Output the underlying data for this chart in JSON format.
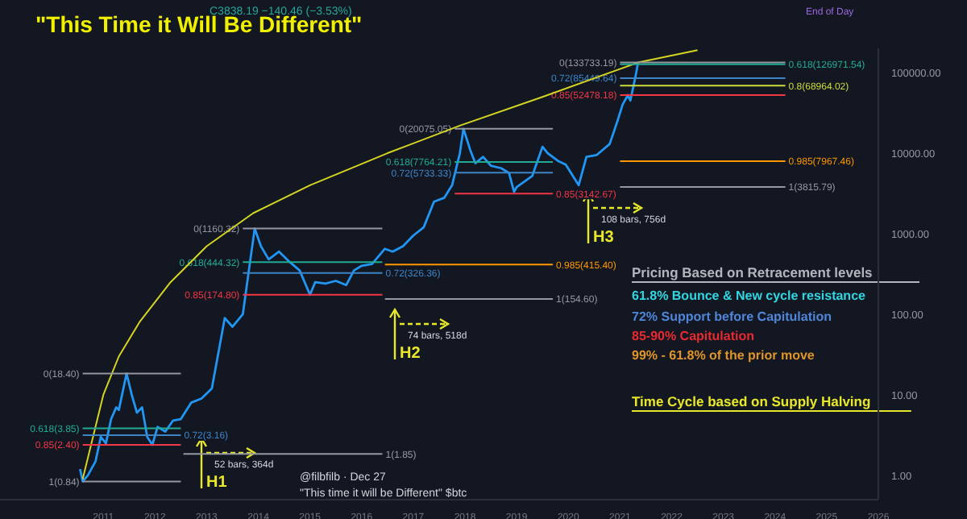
{
  "chart_data": {
    "type": "line",
    "title": "\"This Time it Will Be Different\"",
    "log": "y",
    "marker": "none",
    "line_style": "solid",
    "xlim": [
      2009,
      2026
    ],
    "xticks": [
      2011,
      2012,
      2013,
      2014,
      2015,
      2016,
      2017,
      2018,
      2019,
      2020,
      2021,
      2022,
      2023,
      2024,
      2025,
      2026
    ],
    "ylim": [
      0.5,
      200000
    ],
    "yticks": [
      {
        "value": 1,
        "label": "1.00"
      },
      {
        "value": 10,
        "label": "10.00"
      },
      {
        "value": 100,
        "label": "100.00"
      },
      {
        "value": 1000,
        "label": "1000.00"
      },
      {
        "value": 10000,
        "label": "10000.00"
      },
      {
        "value": 100000,
        "label": "100000.00"
      }
    ],
    "series": [
      {
        "color": "#2196f3",
        "x": [
          2010.55,
          2010.6,
          2010.7,
          2010.85,
          2010.95,
          2011.05,
          2011.15,
          2011.25,
          2011.3,
          2011.45,
          2011.55,
          2011.65,
          2011.75,
          2011.85,
          2011.95,
          2012.05,
          2012.2,
          2012.35,
          2012.5,
          2012.7,
          2012.9,
          2013.1,
          2013.3,
          2013.35,
          2013.5,
          2013.7,
          2013.85,
          2013.93,
          2014.05,
          2014.2,
          2014.4,
          2014.6,
          2014.8,
          2015.0,
          2015.1,
          2015.3,
          2015.5,
          2015.7,
          2015.85,
          2016.0,
          2016.2,
          2016.45,
          2016.6,
          2016.8,
          2017.0,
          2017.2,
          2017.4,
          2017.6,
          2017.75,
          2017.9,
          2017.97,
          2018.1,
          2018.2,
          2018.35,
          2018.5,
          2018.7,
          2018.85,
          2018.95,
          2019.0,
          2019.3,
          2019.5,
          2019.6,
          2019.8,
          2019.95,
          2020.2,
          2020.35,
          2020.55,
          2020.8,
          2020.95,
          2021.05,
          2021.15,
          2021.2,
          2021.3,
          2021.35
        ],
        "values": [
          1.2,
          0.84,
          1.0,
          1.5,
          3,
          2.5,
          5,
          7,
          6.5,
          18.4,
          10,
          6,
          7,
          3.0,
          2.4,
          4,
          3.5,
          4.8,
          5,
          8,
          9,
          12,
          60,
          90,
          70,
          100,
          500,
          1160.32,
          700,
          480,
          600,
          450,
          350,
          174.8,
          250,
          240,
          260,
          230,
          350,
          400,
          420,
          650,
          600,
          700,
          950,
          1200,
          2500,
          2800,
          4000,
          10000,
          20075.05,
          11000,
          7500,
          9000,
          7000,
          6500,
          5700,
          3300,
          3800,
          5200,
          12000,
          10000,
          8000,
          7200,
          4000,
          9000,
          9500,
          13000,
          25000,
          40000,
          52478.18,
          45000,
          90000,
          133733.19
        ]
      },
      {
        "color": "#d4d422",
        "x": [
          2010.6,
          2010.8,
          2011.0,
          2011.3,
          2011.7,
          2012.3,
          2013.0,
          2013.9,
          2015.0,
          2016.5,
          2017.9,
          2019.5,
          2021.35,
          2022.5
        ],
        "values": [
          0.9,
          3,
          10,
          30,
          80,
          250,
          700,
          1800,
          4000,
          10000,
          22000,
          50000,
          133733.19,
          190000
        ]
      },
      {
        "color": "#9598a1",
        "x": [
          2010.6,
          2012.5
        ],
        "values": [
          18.4,
          18.4
        ]
      },
      {
        "color": "#22ab94",
        "x": [
          2010.6,
          2012.5
        ],
        "values": [
          3.85,
          3.85
        ]
      },
      {
        "color": "#3d85c6",
        "x": [
          2010.6,
          2012.5
        ],
        "values": [
          3.16,
          3.16
        ]
      },
      {
        "color": "#f23645",
        "x": [
          2010.6,
          2012.5
        ],
        "values": [
          2.4,
          2.4
        ]
      },
      {
        "color": "#9598a1",
        "x": [
          2010.6,
          2012.5
        ],
        "values": [
          0.84,
          0.84
        ]
      },
      {
        "color": "#9598a1",
        "x": [
          2012.55,
          2016.4
        ],
        "values": [
          1.85,
          1.85
        ]
      },
      {
        "color": "#9598a1",
        "x": [
          2013.7,
          2016.4
        ],
        "values": [
          1160.32,
          1160.32
        ]
      },
      {
        "color": "#22ab94",
        "x": [
          2013.7,
          2016.4
        ],
        "values": [
          444.32,
          444.32
        ]
      },
      {
        "color": "#3d85c6",
        "x": [
          2013.7,
          2016.4
        ],
        "values": [
          326.36,
          326.36
        ]
      },
      {
        "color": "#f23645",
        "x": [
          2013.7,
          2016.4
        ],
        "values": [
          174.8,
          174.8
        ]
      },
      {
        "color": "#9598a1",
        "x": [
          2016.45,
          2019.7
        ],
        "values": [
          154.6,
          154.6
        ]
      },
      {
        "color": "#ff9800",
        "x": [
          2016.45,
          2019.7
        ],
        "values": [
          415.4,
          415.4
        ]
      },
      {
        "color": "#9598a1",
        "x": [
          2017.8,
          2019.7
        ],
        "values": [
          20075.05,
          20075.05
        ]
      },
      {
        "color": "#22ab94",
        "x": [
          2017.8,
          2019.7
        ],
        "values": [
          7764.21,
          7764.21
        ]
      },
      {
        "color": "#3d85c6",
        "x": [
          2017.8,
          2019.7
        ],
        "values": [
          5733.33,
          5733.33
        ]
      },
      {
        "color": "#f23645",
        "x": [
          2017.8,
          2019.7
        ],
        "values": [
          3142.67,
          3142.67
        ]
      },
      {
        "color": "#9598a1",
        "x": [
          2021.0,
          2024.2
        ],
        "values": [
          133733.19,
          133733.19
        ]
      },
      {
        "color": "#22ab94",
        "x": [
          2021.0,
          2024.2
        ],
        "values": [
          126971.54,
          126971.54
        ]
      },
      {
        "color": "#3d85c6",
        "x": [
          2021.0,
          2024.2
        ],
        "values": [
          85449.64,
          85449.64
        ]
      },
      {
        "color": "#cddc39",
        "x": [
          2021.0,
          2024.2
        ],
        "values": [
          68964.02,
          68964.02
        ]
      },
      {
        "color": "#f23645",
        "x": [
          2021.0,
          2024.2
        ],
        "values": [
          52478.18,
          52478.18
        ]
      },
      {
        "color": "#ff9800",
        "x": [
          2021.0,
          2024.2
        ],
        "values": [
          7967.46,
          7967.46
        ]
      },
      {
        "color": "#9598a1",
        "x": [
          2021.0,
          2024.2
        ],
        "values": [
          3815.79,
          3815.79
        ]
      }
    ],
    "annotations": [
      "C3838.19 −140.46 (−3.53%)",
      "End of Day",
      "Pricing Based on Retracement levels",
      "61.8% Bounce & New cycle resistance",
      "72% Support before Capitulation",
      "85-90% Capitulation",
      "99% - 61.8% of the prior move",
      "Time Cycle based on Supply Halving",
      "@filbfilb · Dec 27",
      "\"This time it will be Different\" $btc",
      {
        "text": "0(18.40)",
        "x": 2010.6,
        "y": 18.4
      },
      {
        "text": "0.618(3.85)",
        "x": 2010.6,
        "y": 3.85
      },
      {
        "text": "0.72(3.16)",
        "x": 2012.5,
        "y": 3.16
      },
      {
        "text": "0.85(2.40)",
        "x": 2010.6,
        "y": 2.4
      },
      {
        "text": "1(0.84)",
        "x": 2010.6,
        "y": 0.84
      },
      {
        "text": "1(1.85)",
        "x": 2016.4,
        "y": 1.85
      },
      {
        "text": "0(1160.32)",
        "x": 2013.7,
        "y": 1160.32
      },
      {
        "text": "0.618(444.32)",
        "x": 2013.7,
        "y": 444.32
      },
      {
        "text": "0.72(326.36)",
        "x": 2016.4,
        "y": 326.36
      },
      {
        "text": "0.85(174.80)",
        "x": 2013.7,
        "y": 174.8
      },
      {
        "text": "1(154.60)",
        "x": 2019.7,
        "y": 154.6
      },
      {
        "text": "0.985(415.40)",
        "x": 2019.7,
        "y": 415.4
      },
      {
        "text": "0(20075.05)",
        "x": 2017.8,
        "y": 20075.05
      },
      {
        "text": "0.618(7764.21)",
        "x": 2017.8,
        "y": 7764.21
      },
      {
        "text": "0.72(5733.33)",
        "x": 2017.8,
        "y": 5733.33
      },
      {
        "text": "0.85(3142.67)",
        "x": 2019.7,
        "y": 3142.67
      },
      {
        "text": "0(133733.19)",
        "x": 2021.0,
        "y": 133733.19
      },
      {
        "text": "0.618(126971.54)",
        "x": 2024.2,
        "y": 126971.54
      },
      {
        "text": "0.72(85449.64)",
        "x": 2021.0,
        "y": 85449.64
      },
      {
        "text": "0.8(68964.02)",
        "x": 2024.2,
        "y": 68964.02
      },
      {
        "text": "0.85(52478.18)",
        "x": 2021.0,
        "y": 52478.18
      },
      {
        "text": "0.985(7967.46)",
        "x": 2024.2,
        "y": 7967.46
      },
      {
        "text": "1(3815.79)",
        "x": 2024.2,
        "y": 3815.79
      },
      "H1",
      "52 bars, 364d",
      "H2",
      "74 bars, 518d",
      "H3",
      "108 bars, 756d"
    ]
  }
}
